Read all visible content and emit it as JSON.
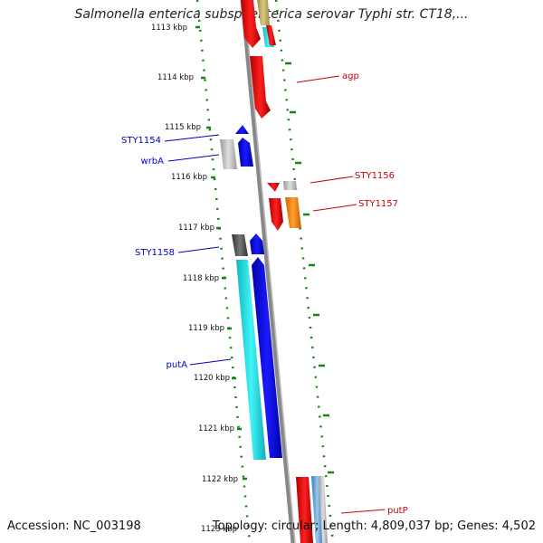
{
  "title": "Salmonella enterica subsp. enterica serovar Typhi str. CT18,...",
  "accession": "Accession: NC_003198",
  "summary": "Topology: circular; Length: 4,809,037 bp; Genes: 4,502",
  "ticks": [
    "1113 kbp",
    "1114 kbp",
    "1115 kbp",
    "1116 kbp",
    "1117 kbp",
    "1118 kbp",
    "1119 kbp",
    "1120 kbp",
    "1121 kbp",
    "1122 kbp",
    "1123 kbp"
  ],
  "gene_labels": [
    {
      "text": "agp",
      "color": "#cc0000"
    },
    {
      "text": "STY1154",
      "color": "#0000cc"
    },
    {
      "text": "wrbA",
      "color": "#0000cc"
    },
    {
      "text": "STY1156",
      "color": "#cc0000"
    },
    {
      "text": "STY1157",
      "color": "#cc0000"
    },
    {
      "text": "STY1158",
      "color": "#0000cc"
    },
    {
      "text": "putA",
      "color": "#0000cc"
    },
    {
      "text": "putP",
      "color": "#cc0000"
    }
  ],
  "colors": {
    "forward_cds": "#ee0000",
    "reverse_cds": "#0000ee",
    "accent_cyan": "#22e0e6",
    "accent_orange": "#ff8c00",
    "gray_feature": "#bdbdbd",
    "dark_gray_feature": "#555555",
    "tick_mark": "#118811",
    "backbone": "#888888"
  }
}
